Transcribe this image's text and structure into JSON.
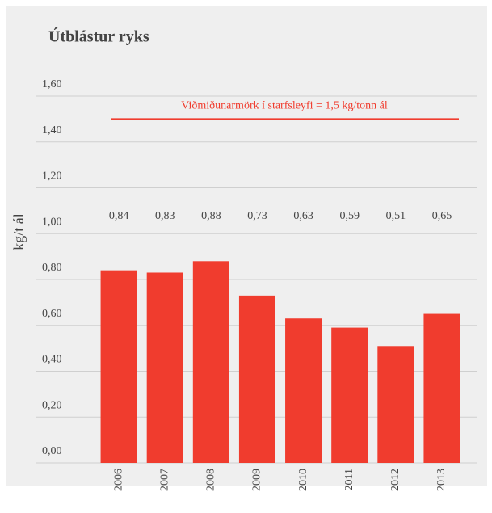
{
  "chart_data": {
    "type": "bar",
    "title": "Útblástur ryks",
    "y_label": "kg/t ál",
    "categories": [
      "2006",
      "2007",
      "2008",
      "2009",
      "2010",
      "2011",
      "2012",
      "2013"
    ],
    "values": [
      0.84,
      0.83,
      0.88,
      0.73,
      0.63,
      0.59,
      0.51,
      0.65
    ],
    "value_labels": [
      "0,84",
      "0,83",
      "0,88",
      "0,73",
      "0,63",
      "0,59",
      "0,51",
      "0,65"
    ],
    "color": "#f03c2e",
    "ylim": [
      0,
      1.6
    ],
    "yticks": [
      {
        "value": 0,
        "label": "0,00"
      },
      {
        "value": 0.2,
        "label": "0,20"
      },
      {
        "value": 0.4,
        "label": "0,40"
      },
      {
        "value": 0.6,
        "label": "0,60"
      },
      {
        "value": 0.8,
        "label": "0,80"
      },
      {
        "value": 1.0,
        "label": "1,00"
      },
      {
        "value": 1.2,
        "label": "1,20"
      },
      {
        "value": 1.4,
        "label": "1,40"
      },
      {
        "value": 1.6,
        "label": "1,60"
      }
    ],
    "grid": true,
    "reference_line": {
      "value": 1.5,
      "label": "Viðmiðunarmörk í starfsleyfi = 1,5 kg/tonn ál",
      "color": "#f03c2e"
    }
  }
}
